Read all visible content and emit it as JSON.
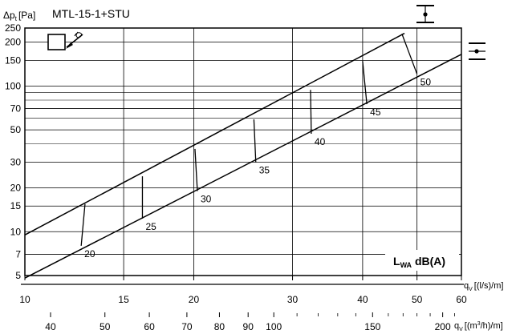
{
  "chart_data": {
    "type": "line",
    "title": "MTL-15-1+STU",
    "y_axis": {
      "label_main": "Δp",
      "label_sub": "t",
      "label_unit": "[Pa]",
      "scale": "log",
      "range": [
        5,
        250
      ],
      "ticks": [
        5,
        7,
        10,
        15,
        20,
        30,
        50,
        70,
        100,
        150,
        200,
        250
      ],
      "minor_gridlines": [
        40,
        60,
        80,
        90
      ]
    },
    "x_axis": {
      "label_main": "q",
      "label_sub": "V",
      "label_unit": "[(l/s)/m]",
      "scale": "log",
      "range": [
        10,
        60
      ],
      "ticks": [
        10,
        15,
        20,
        30,
        40,
        50,
        60
      ]
    },
    "x_axis_secondary": {
      "label_main": "q",
      "label_sub": "V",
      "label_unit": "[(m",
      "label_sup": "3",
      "label_unit_end": "/h)/m]",
      "scale": "log",
      "ticks": [
        40,
        50,
        60,
        70,
        80,
        90,
        100,
        150,
        200
      ],
      "minor_ticks": [
        110,
        120,
        130,
        140,
        160,
        170,
        180,
        190,
        210
      ]
    },
    "series": [
      {
        "name": "upper",
        "x": [
          10,
          47.5
        ],
        "y": [
          9.5,
          230
        ]
      },
      {
        "name": "lower",
        "x": [
          10,
          60
        ],
        "y": [
          4.8,
          165
        ]
      }
    ],
    "sound_lines": [
      {
        "label": "20",
        "x_top": 12.8,
        "y_top": 15.5,
        "x_bottom": 12.6,
        "y_bottom": 8.0
      },
      {
        "label": "25",
        "x_top": 16.2,
        "y_top": 24,
        "x_bottom": 16.2,
        "y_bottom": 12.3
      },
      {
        "label": "30",
        "x_top": 20.1,
        "y_top": 37,
        "x_bottom": 20.3,
        "y_bottom": 19
      },
      {
        "label": "35",
        "x_top": 25.6,
        "y_top": 59,
        "x_bottom": 25.8,
        "y_bottom": 30
      },
      {
        "label": "40",
        "x_top": 32.3,
        "y_top": 94,
        "x_bottom": 32.4,
        "y_bottom": 47
      },
      {
        "label": "45",
        "x_top": 40.0,
        "y_top": 148,
        "x_bottom": 40.7,
        "y_bottom": 75
      },
      {
        "label": "50",
        "x_top": 47.0,
        "y_top": 228,
        "x_bottom": 50.0,
        "y_bottom": 121
      }
    ],
    "legend": {
      "main": "L",
      "sub": "WA",
      "rest": " dB(A)",
      "position": "bottom-right"
    },
    "grid": true
  },
  "icons": {
    "damper_symbol": "airflow-damper-icon",
    "installation_top": "ceiling-mount-icon",
    "installation_side": "wall-mount-icon"
  }
}
